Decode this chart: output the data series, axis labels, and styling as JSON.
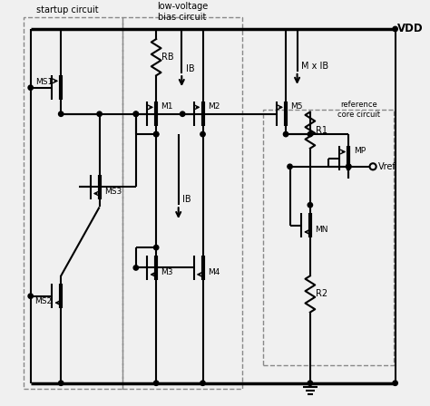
{
  "figsize": [
    4.74,
    4.48
  ],
  "dpi": 100,
  "bg": "#f0f0f0",
  "lc": "black",
  "lw": 1.5,
  "labels": {
    "startup": "startup circuit",
    "bias1": "low-voltage",
    "bias2": "bias circuit",
    "vdd": "VDD",
    "ib1": "IB",
    "ib2": "IB",
    "mxib": "M x IB",
    "rb": "RB",
    "m1": "M1",
    "m2": "M2",
    "m3": "M3",
    "m4": "M4",
    "m5": "M5",
    "ms1": "MS1",
    "ms2": "MS2",
    "ms3": "MS3",
    "mp": "MP",
    "mn": "MN",
    "r1": "R1",
    "r2": "R2",
    "vref": "Vref",
    "refcore": "reference\ncore circuit"
  }
}
